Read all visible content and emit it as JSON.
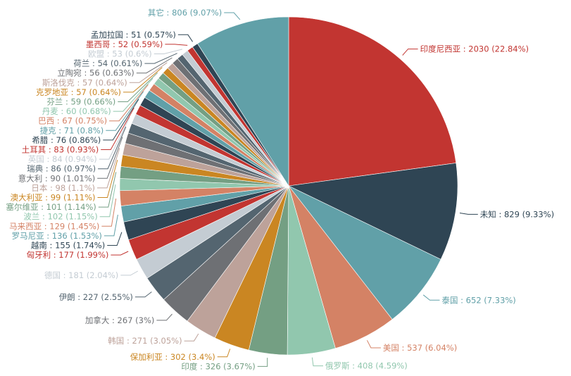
{
  "chart_data": {
    "type": "pie",
    "title": "",
    "palette": [
      "#c23531",
      "#2f4554",
      "#61a0a8",
      "#d48265",
      "#91c7ae",
      "#749f83",
      "#ca8622",
      "#bda29a",
      "#6e7074",
      "#546570",
      "#c4ccd3"
    ],
    "slices": [
      {
        "name": "印度尼西亚",
        "value": 2030,
        "percent": "22.84%",
        "label": "印度尼西亚 : 2030 (22.84%)"
      },
      {
        "name": "未知",
        "value": 829,
        "percent": "9.33%",
        "label": "未知 : 829 (9.33%)"
      },
      {
        "name": "泰国",
        "value": 652,
        "percent": "7.33%",
        "label": "泰国 : 652 (7.33%)"
      },
      {
        "name": "美国",
        "value": 537,
        "percent": "6.04%",
        "label": "美国 : 537 (6.04%)"
      },
      {
        "name": "俄罗斯",
        "value": 408,
        "percent": "4.59%",
        "label": "俄罗斯 : 408 (4.59%)"
      },
      {
        "name": "印度",
        "value": 326,
        "percent": "3.67%",
        "label": "印度 : 326 (3.67%)"
      },
      {
        "name": "保加利亚",
        "value": 302,
        "percent": "3.4%",
        "label": "保加利亚 : 302 (3.4%)"
      },
      {
        "name": "韩国",
        "value": 271,
        "percent": "3.05%",
        "label": "韩国 : 271 (3.05%)"
      },
      {
        "name": "加拿大",
        "value": 267,
        "percent": "3%",
        "label": "加拿大 : 267 (3%)"
      },
      {
        "name": "伊朗",
        "value": 227,
        "percent": "2.55%",
        "label": "伊朗 : 227 (2.55%)"
      },
      {
        "name": "德国",
        "value": 181,
        "percent": "2.04%",
        "label": "德国 : 181 (2.04%)"
      },
      {
        "name": "匈牙利",
        "value": 177,
        "percent": "1.99%",
        "label": "匈牙利 : 177 (1.99%)"
      },
      {
        "name": "越南",
        "value": 155,
        "percent": "1.74%",
        "label": "越南 : 155 (1.74%)"
      },
      {
        "name": "罗马尼亚",
        "value": 136,
        "percent": "1.53%",
        "label": "罗马尼亚 : 136 (1.53%)"
      },
      {
        "name": "马来西亚",
        "value": 129,
        "percent": "1.45%",
        "label": "马来西亚 : 129 (1.45%)"
      },
      {
        "name": "波兰",
        "value": 102,
        "percent": "1.15%",
        "label": "波兰 : 102 (1.15%)"
      },
      {
        "name": "塞尔维亚",
        "value": 101,
        "percent": "1.14%",
        "label": "塞尔维亚 : 101 (1.14%)"
      },
      {
        "name": "澳大利亚",
        "value": 99,
        "percent": "1.11%",
        "label": "澳大利亚 : 99 (1.11%)"
      },
      {
        "name": "日本",
        "value": 98,
        "percent": "1.1%",
        "label": "日本 : 98 (1.1%)"
      },
      {
        "name": "意大利",
        "value": 90,
        "percent": "1.01%",
        "label": "意大利 : 90 (1.01%)"
      },
      {
        "name": "瑞典",
        "value": 86,
        "percent": "0.97%",
        "label": "瑞典 : 86 (0.97%)"
      },
      {
        "name": "英国",
        "value": 84,
        "percent": "0.94%",
        "label": "英国 : 84 (0.94%)"
      },
      {
        "name": "土耳其",
        "value": 83,
        "percent": "0.93%",
        "label": "土耳其 : 83 (0.93%)"
      },
      {
        "name": "希腊",
        "value": 76,
        "percent": "0.86%",
        "label": "希腊 : 76 (0.86%)"
      },
      {
        "name": "捷克",
        "value": 71,
        "percent": "0.8%",
        "label": "捷克 : 71 (0.8%)"
      },
      {
        "name": "巴西",
        "value": 67,
        "percent": "0.75%",
        "label": "巴西 : 67 (0.75%)"
      },
      {
        "name": "丹麦",
        "value": 60,
        "percent": "0.68%",
        "label": "丹麦 : 60 (0.68%)"
      },
      {
        "name": "芬兰",
        "value": 59,
        "percent": "0.66%",
        "label": "芬兰 : 59 (0.66%)"
      },
      {
        "name": "克罗地亚",
        "value": 57,
        "percent": "0.64%",
        "label": "克罗地亚 : 57 (0.64%)"
      },
      {
        "name": "斯洛伐克",
        "value": 57,
        "percent": "0.64%",
        "label": "斯洛伐克 : 57 (0.64%)"
      },
      {
        "name": "立陶宛",
        "value": 56,
        "percent": "0.63%",
        "label": "立陶宛 : 56 (0.63%)"
      },
      {
        "name": "荷兰",
        "value": 54,
        "percent": "0.61%",
        "label": "荷兰 : 54 (0.61%)"
      },
      {
        "name": "欧盟",
        "value": 53,
        "percent": "0.6%",
        "label": "欧盟 : 53 (0.6%)"
      },
      {
        "name": "墨西哥",
        "value": 52,
        "percent": "0.59%",
        "label": "墨西哥 : 52 (0.59%)"
      },
      {
        "name": "孟加拉国",
        "value": 51,
        "percent": "0.57%",
        "label": "孟加拉国 : 51 (0.57%)"
      },
      {
        "name": "其它",
        "value": 806,
        "percent": "9.07%",
        "label": "其它 : 806 (9.07%)"
      }
    ]
  }
}
